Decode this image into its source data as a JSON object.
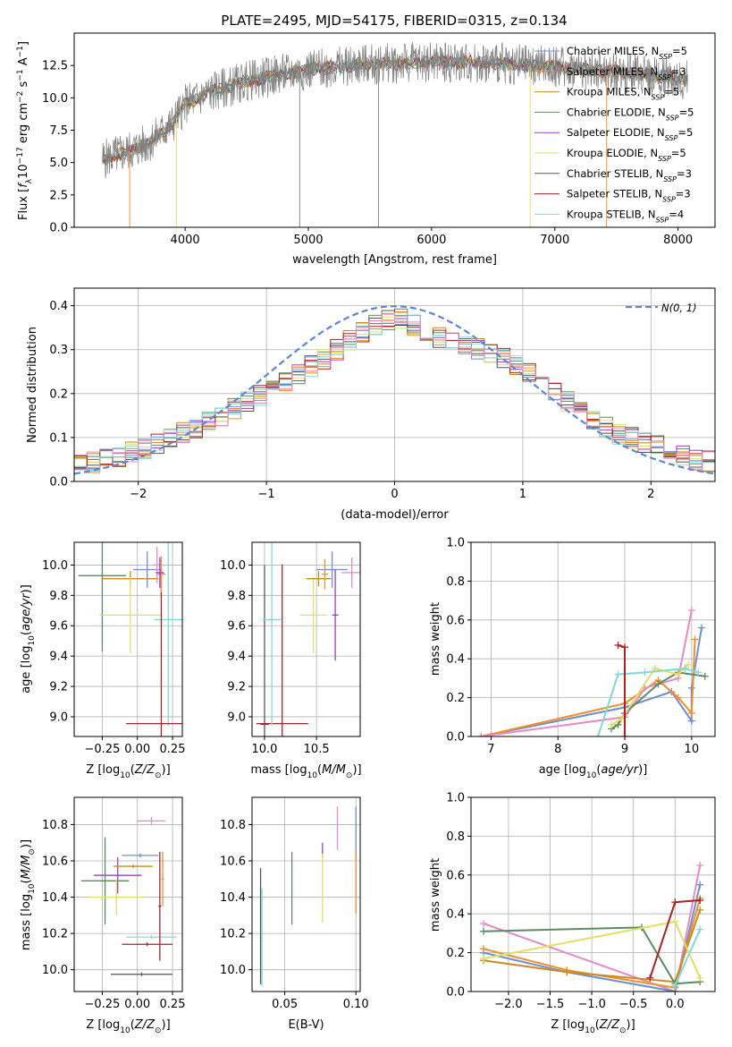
{
  "chart_data": [
    {
      "type": "line",
      "title": "PLATE=2495, MJD=54175, FIBERID=0315, z=0.134",
      "xlabel": "wavelength [Angstrom, rest frame]",
      "ylabel": "Flux [f_λ 10^-17 erg cm^-2 s^-1 A^-1]",
      "xlim": [
        3100,
        8300
      ],
      "ylim": [
        0,
        15
      ],
      "xticks": [
        4000,
        5000,
        6000,
        7000,
        8000
      ],
      "yticks": [
        "0.0",
        "2.5",
        "5.0",
        "7.5",
        "10.0",
        "12.5"
      ],
      "legend_position": "right",
      "spectrum_continuum": {
        "x": [
          3350,
          3550,
          3700,
          3900,
          4000,
          4200,
          4500,
          5000,
          5500,
          6000,
          6500,
          7000,
          7500,
          8100
        ],
        "y": [
          5.3,
          5.9,
          6.5,
          8.0,
          9.5,
          10.4,
          11.3,
          12.2,
          12.6,
          12.8,
          12.7,
          12.4,
          12.0,
          11.4
        ]
      },
      "series": [
        {
          "name": "Chabrier MILES, N_SSP=5",
          "color": "#6a8fd8"
        },
        {
          "name": "Salpeter MILES, N_SSP=3",
          "color": "#f28e2b"
        },
        {
          "name": "Kroupa MILES, N_SSP=5",
          "color": "#c98a1e"
        },
        {
          "name": "Chabrier ELODIE, N_SSP=5",
          "color": "#5c8a63"
        },
        {
          "name": "Salpeter ELODIE, N_SSP=5",
          "color": "#9b3fbf"
        },
        {
          "name": "Kroupa ELODIE, N_SSP=5",
          "color": "#e2e060"
        },
        {
          "name": "Chabrier STELIB, N_SSP=3",
          "color": "#555555"
        },
        {
          "name": "Salpeter STELIB, N_SSP=3",
          "color": "#b02020"
        },
        {
          "name": "Kroupa STELIB, N_SSP=4",
          "color": "#80d8dc"
        }
      ]
    },
    {
      "type": "line",
      "xlabel": "(data-model)/error",
      "ylabel": "Normed distribution",
      "xlim": [
        -2.5,
        2.5
      ],
      "ylim": [
        0,
        0.44
      ],
      "xticks": [
        "−2",
        "−1",
        "0",
        "1",
        "2"
      ],
      "yticks": [
        "0.0",
        "0.1",
        "0.2",
        "0.3",
        "0.4"
      ],
      "grid": true,
      "legend_position": "top-right",
      "reference": {
        "name": "N(0, 1)",
        "mean": 0,
        "sigma": 1,
        "color": "#5b87d6"
      },
      "histogram": {
        "bins": 50,
        "base_envelope": [
          0.04,
          0.045,
          0.05,
          0.058,
          0.065,
          0.075,
          0.085,
          0.097,
          0.11,
          0.123,
          0.137,
          0.15,
          0.165,
          0.18,
          0.195,
          0.21,
          0.227,
          0.244,
          0.262,
          0.28,
          0.3,
          0.32,
          0.34,
          0.355,
          0.37,
          0.372,
          0.355,
          0.34,
          0.33,
          0.32,
          0.31,
          0.3,
          0.29,
          0.278,
          0.265,
          0.25,
          0.232,
          0.21,
          0.185,
          0.16,
          0.14,
          0.125,
          0.11,
          0.1,
          0.09,
          0.08,
          0.07,
          0.06,
          0.05,
          0.045
        ],
        "colors": [
          "#6a8fd8",
          "#f28e2b",
          "#c98a1e",
          "#5c8a63",
          "#9b3fbf",
          "#e2e060",
          "#555555",
          "#b02020",
          "#80d8dc",
          "#e88ac6"
        ]
      }
    },
    {
      "type": "scatter",
      "xlabel": "Z [log10(Z/Z⊙)]",
      "ylabel": "age  [log10(age/yr)]",
      "xlim": [
        -0.45,
        0.32
      ],
      "ylim": [
        8.87,
        10.15
      ],
      "xticks": [
        "−0.25",
        "0.00",
        "0.25"
      ],
      "yticks": [
        "9.0",
        "9.2",
        "9.4",
        "9.6",
        "9.8",
        "10.0"
      ],
      "grid": true,
      "errorbars": [
        {
          "color": "#5c8a63",
          "x": -0.25,
          "y": 9.93,
          "xerr": 0.17,
          "yerr": 0.5
        },
        {
          "color": "#c98a1e",
          "x": -0.05,
          "y": 9.91,
          "xerr": 0.2,
          "yerr": 0.05
        },
        {
          "color": "#6a8fd8",
          "x": 0.07,
          "y": 9.97,
          "xerr": 0.1,
          "yerr": 0.12
        },
        {
          "color": "#e2e060",
          "x": -0.05,
          "y": 9.67,
          "xerr": 0.22,
          "yerr": 0.25
        },
        {
          "color": "#80d8dc",
          "x": 0.22,
          "y": 9.64,
          "xerr": 0.1,
          "yerr": 0.7
        },
        {
          "color": "#b02020",
          "x": 0.17,
          "y": 8.955,
          "xerr": 0.25,
          "yerr": 1.02
        },
        {
          "color": "#f28e2b",
          "x": 0.17,
          "y": 9.94,
          "xerr": 0.03,
          "yerr": 0.12
        },
        {
          "color": "#e88ac6",
          "x": 0.14,
          "y": 10.0,
          "xerr": 0.03,
          "yerr": 0.12
        },
        {
          "color": "#9b3fbf",
          "x": 0.16,
          "y": 9.95,
          "xerr": 0.03,
          "yerr": 0.1
        }
      ]
    },
    {
      "type": "scatter",
      "xlabel": "mass [log10(M/M⊙)]",
      "ylabel": "",
      "xlim": [
        9.88,
        10.92
      ],
      "ylim": [
        8.87,
        10.15
      ],
      "xticks": [
        "10.0",
        "10.5"
      ],
      "yticks": [
        "9.0",
        "9.2",
        "9.4",
        "9.6",
        "9.8",
        "10.0"
      ],
      "grid": true,
      "errorbars": [
        {
          "color": "#555555",
          "x": 10.0,
          "y": 8.95,
          "xerr": 0.04,
          "yerr": 1.05
        },
        {
          "color": "#b02020",
          "x": 10.17,
          "y": 8.955,
          "xerr": 0.25,
          "yerr": 1.05
        },
        {
          "color": "#80d8dc",
          "x": 10.07,
          "y": 9.64,
          "xerr": 0.09,
          "yerr": 0.7
        },
        {
          "color": "#e2e060",
          "x": 10.47,
          "y": 9.67,
          "xerr": 0.13,
          "yerr": 0.25
        },
        {
          "color": "#c98a1e",
          "x": 10.52,
          "y": 9.91,
          "xerr": 0.12,
          "yerr": 0.05
        },
        {
          "color": "#6a8fd8",
          "x": 10.65,
          "y": 9.97,
          "xerr": 0.15,
          "yerr": 0.12
        },
        {
          "color": "#e88ac6",
          "x": 10.84,
          "y": 9.95,
          "xerr": 0.1,
          "yerr": 0.1
        },
        {
          "color": "#9b3fbf",
          "x": 10.68,
          "y": 9.67,
          "xerr": 0.03,
          "yerr": 0.3
        },
        {
          "color": "#f28e2b",
          "x": 10.58,
          "y": 9.94,
          "xerr": 0.03,
          "yerr": 0.1
        }
      ]
    },
    {
      "type": "line",
      "xlabel": "age  [log10(age/yr)]",
      "ylabel": "mass weight",
      "xlim": [
        6.7,
        10.35
      ],
      "ylim": [
        0,
        1
      ],
      "xticks": [
        "7",
        "8",
        "9",
        "10"
      ],
      "yticks": [
        "0.0",
        "0.2",
        "0.4",
        "0.6",
        "0.8",
        "1.0"
      ],
      "grid": true,
      "series": [
        {
          "color": "#6a8fd8",
          "x": [
            6.85,
            9.0,
            9.7,
            10.0,
            10.0,
            10.15
          ],
          "y": [
            0.0,
            0.15,
            0.23,
            0.08,
            0.25,
            0.56
          ]
        },
        {
          "color": "#f28e2b",
          "x": [
            6.85,
            9.0,
            9.5,
            9.8,
            10.0,
            10.05
          ],
          "y": [
            0.0,
            0.17,
            0.29,
            0.2,
            0.12,
            0.5
          ]
        },
        {
          "color": "#e88ac6",
          "x": [
            6.85,
            9.0,
            9.3,
            9.8,
            10.0
          ],
          "y": [
            0.0,
            0.1,
            0.25,
            0.3,
            0.65
          ]
        },
        {
          "color": "#5c8a63",
          "x": [
            8.8,
            8.9,
            9.0,
            9.5,
            9.8,
            10.2
          ],
          "y": [
            0.04,
            0.06,
            0.12,
            0.27,
            0.33,
            0.31
          ]
        },
        {
          "color": "#e2e060",
          "x": [
            8.8,
            8.95,
            9.45,
            9.8,
            9.95
          ],
          "y": [
            0.06,
            0.09,
            0.35,
            0.32,
            0.37
          ]
        },
        {
          "color": "#80d8dc",
          "x": [
            8.6,
            8.9,
            9.3,
            9.9,
            10.1
          ],
          "y": [
            0.0,
            0.32,
            0.33,
            0.35,
            0.33
          ]
        },
        {
          "color": "#b02020",
          "x": [
            8.9,
            9.0,
            9.0
          ],
          "y": [
            0.47,
            0.46,
            0.0
          ]
        }
      ]
    },
    {
      "type": "scatter",
      "xlabel": "Z [log10(Z/Z⊙)]",
      "ylabel": "mass [log10(M/M⊙)]",
      "xlim": [
        -0.45,
        0.32
      ],
      "ylim": [
        9.88,
        10.95
      ],
      "xticks": [
        "−0.25",
        "0.00",
        "0.25"
      ],
      "yticks": [
        "10.0",
        "10.2",
        "10.4",
        "10.6",
        "10.8"
      ],
      "grid": true,
      "errorbars": [
        {
          "color": "#e88ac6",
          "x": 0.1,
          "y": 10.82,
          "xerr": 0.1,
          "yerr": 0.02
        },
        {
          "color": "#6a8fd8",
          "x": 0.02,
          "y": 10.63,
          "xerr": 0.13,
          "yerr": 0.01
        },
        {
          "color": "#9b3fbf",
          "x": -0.14,
          "y": 10.52,
          "xerr": 0.17,
          "yerr": 0.1
        },
        {
          "color": "#5c8a63",
          "x": -0.23,
          "y": 10.49,
          "xerr": 0.17,
          "yerr": 0.24
        },
        {
          "color": "#c98a1e",
          "x": -0.03,
          "y": 10.57,
          "xerr": 0.14,
          "yerr": 0.01
        },
        {
          "color": "#e2e060",
          "x": -0.15,
          "y": 10.4,
          "xerr": 0.2,
          "yerr": 0.1
        },
        {
          "color": "#80d8dc",
          "x": 0.1,
          "y": 10.18,
          "xerr": 0.18,
          "yerr": 0.01
        },
        {
          "color": "#b02020",
          "x": 0.07,
          "y": 10.14,
          "xerr": 0.18,
          "yerr": 0.01
        },
        {
          "color": "#555555",
          "x": 0.03,
          "y": 9.975,
          "xerr": 0.22,
          "yerr": 0.01
        },
        {
          "color": "#b02020",
          "x": 0.16,
          "y": 10.35,
          "xerr": 0.01,
          "yerr": 0.3
        },
        {
          "color": "#f28e2b",
          "x": 0.18,
          "y": 10.5,
          "xerr": 0.01,
          "yerr": 0.15
        }
      ]
    },
    {
      "type": "scatter",
      "xlabel": "E(B-V)",
      "ylabel": "",
      "xlim": [
        0.027,
        0.103
      ],
      "ylim": [
        9.88,
        10.95
      ],
      "xticks": [
        "0.05",
        "0.10"
      ],
      "yticks": [
        "10.0",
        "10.2",
        "10.4",
        "10.6",
        "10.8"
      ],
      "grid": true,
      "errorbars": [
        {
          "color": "#555555",
          "x": 0.033,
          "y": 10.24,
          "xerr": 0.0,
          "yerr": 0.32
        },
        {
          "color": "#80d8dc",
          "x": 0.034,
          "y": 10.18,
          "xerr": 0.0,
          "yerr": 0.27
        },
        {
          "color": "#5c8a63",
          "x": 0.055,
          "y": 10.45,
          "xerr": 0.0,
          "yerr": 0.2
        },
        {
          "color": "#9b3fbf",
          "x": 0.0765,
          "y": 10.66,
          "xerr": 0.0,
          "yerr": 0.04
        },
        {
          "color": "#e2e060",
          "x": 0.0765,
          "y": 10.45,
          "xerr": 0.0,
          "yerr": 0.19
        },
        {
          "color": "#e88ac6",
          "x": 0.087,
          "y": 10.78,
          "xerr": 0.0,
          "yerr": 0.12
        },
        {
          "color": "#6a8fd8",
          "x": 0.1,
          "y": 10.75,
          "xerr": 0.0,
          "yerr": 0.15
        },
        {
          "color": "#f28e2b",
          "x": 0.1,
          "y": 10.48,
          "xerr": 0.0,
          "yerr": 0.17
        }
      ]
    },
    {
      "type": "line",
      "xlabel": "Z [log10(Z/Z⊙)]",
      "ylabel": "mass weight",
      "xlim": [
        -2.45,
        0.48
      ],
      "ylim": [
        0,
        1
      ],
      "xticks": [
        "−2.0",
        "−1.5",
        "−1.0",
        "−0.5",
        "0.0"
      ],
      "yticks": [
        "0.0",
        "0.2",
        "0.4",
        "0.6",
        "0.8",
        "1.0"
      ],
      "grid": true,
      "series": [
        {
          "color": "#e88ac6",
          "x": [
            -2.3,
            0.0,
            0.3
          ],
          "y": [
            0.35,
            0.0,
            0.65
          ]
        },
        {
          "color": "#6a8fd8",
          "x": [
            -2.3,
            -1.3,
            0.0,
            0.3
          ],
          "y": [
            0.2,
            0.1,
            0.0,
            0.55
          ]
        },
        {
          "color": "#f28e2b",
          "x": [
            -2.3,
            -1.3,
            0.0,
            0.3
          ],
          "y": [
            0.22,
            0.11,
            0.02,
            0.48
          ]
        },
        {
          "color": "#c98a1e",
          "x": [
            -2.3,
            -1.3,
            0.0,
            0.3
          ],
          "y": [
            0.16,
            0.1,
            0.05,
            0.42
          ]
        },
        {
          "color": "#5c8a63",
          "x": [
            -2.3,
            -0.4,
            0.0,
            0.3
          ],
          "y": [
            0.31,
            0.33,
            0.04,
            0.05
          ]
        },
        {
          "color": "#e2e060",
          "x": [
            -2.3,
            0.0,
            0.3
          ],
          "y": [
            0.17,
            0.36,
            0.07
          ]
        },
        {
          "color": "#b02020",
          "x": [
            -0.3,
            0.0,
            0.3
          ],
          "y": [
            0.07,
            0.46,
            0.47
          ]
        },
        {
          "color": "#80d8dc",
          "x": [
            0.0,
            0.3
          ],
          "y": [
            0.03,
            0.32
          ]
        }
      ]
    }
  ]
}
